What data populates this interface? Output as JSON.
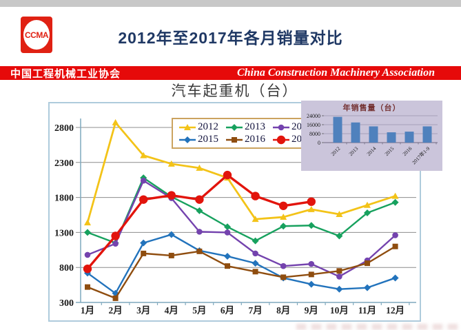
{
  "page": {
    "title": "2012年至2017年各月销量对比"
  },
  "logo": {
    "text": "CCMA"
  },
  "banner": {
    "cn": "中国工程机械工业协会",
    "en": "China Construction Machinery Association"
  },
  "colors": {
    "banner_red": "#e60a0a",
    "title_navy": "#1f3864",
    "panel_border": "#aecbdc",
    "inset_background": "#cbc5db",
    "inset_bar_blue": "#4f81bd",
    "grid_gray": "#8c8c8c",
    "axis_blue": "#7fa9be"
  },
  "chart_data": [
    {
      "type": "line",
      "title": "汽车起重机（台）",
      "x": [
        "1月",
        "2月",
        "3月",
        "4月",
        "5月",
        "6月",
        "7月",
        "8月",
        "9月",
        "10月",
        "11月",
        "12月"
      ],
      "ylim": [
        300,
        3000
      ],
      "yticks": [
        300,
        800,
        1300,
        1800,
        2300,
        2800
      ],
      "grid": true,
      "legend_position": "top-center",
      "series": [
        {
          "name": "2012",
          "color": "#f3c318",
          "marker": "triangle",
          "values": [
            1440,
            2870,
            2400,
            2280,
            2220,
            2080,
            1490,
            1520,
            1630,
            1560,
            1690,
            1820
          ]
        },
        {
          "name": "2013",
          "color": "#17a15e",
          "marker": "diamond",
          "values": [
            1300,
            1150,
            2080,
            1810,
            1610,
            1380,
            1180,
            1390,
            1400,
            1250,
            1580,
            1730
          ]
        },
        {
          "name": "2014",
          "color": "#7443ae",
          "marker": "circle",
          "values": [
            980,
            1140,
            2040,
            1790,
            1310,
            1300,
            1000,
            820,
            850,
            670,
            900,
            1260
          ]
        },
        {
          "name": "2015",
          "color": "#2273bc",
          "marker": "diamond",
          "values": [
            720,
            430,
            1150,
            1270,
            1040,
            960,
            860,
            650,
            560,
            490,
            510,
            650
          ]
        },
        {
          "name": "2016",
          "color": "#8f4d0f",
          "marker": "square",
          "values": [
            520,
            360,
            1000,
            970,
            1030,
            820,
            740,
            660,
            700,
            750,
            860,
            1100
          ]
        },
        {
          "name": "2017",
          "color": "#e2140c",
          "marker": "circle-large",
          "values": [
            780,
            1250,
            1770,
            1830,
            1770,
            2120,
            1820,
            1680,
            1740
          ]
        }
      ]
    },
    {
      "type": "bar",
      "title": "年销售量（台）",
      "categories": [
        "2012",
        "2013",
        "2014",
        "2015",
        "2016",
        "2017年1-9"
      ],
      "values": [
        23000,
        18000,
        14500,
        9200,
        9800,
        14500
      ],
      "ylim": [
        0,
        24000
      ],
      "yticks": [
        0,
        8000,
        16000,
        24000
      ],
      "grid": true
    }
  ]
}
